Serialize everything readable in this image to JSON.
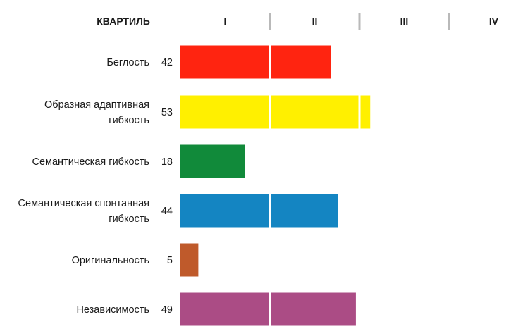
{
  "chart_data": {
    "type": "bar",
    "orientation": "horizontal",
    "header_label": "КВАРТИЛЬ",
    "quartiles": [
      "I",
      "II",
      "III",
      "IV"
    ],
    "xlim": [
      0,
      100
    ],
    "categories": [
      [
        "Беглость"
      ],
      [
        "Образная адаптивная",
        "гибкость"
      ],
      [
        "Семантическая гибкость"
      ],
      [
        "Семантическая спонтанная",
        "гибкость"
      ],
      [
        "Оригинальность"
      ],
      [
        "Независимость"
      ]
    ],
    "values": [
      42,
      53,
      18,
      44,
      5,
      49
    ],
    "colors": [
      "#ff2410",
      "#fff000",
      "#118a3a",
      "#1485c2",
      "#bf5a2b",
      "#ab4c85"
    ]
  }
}
